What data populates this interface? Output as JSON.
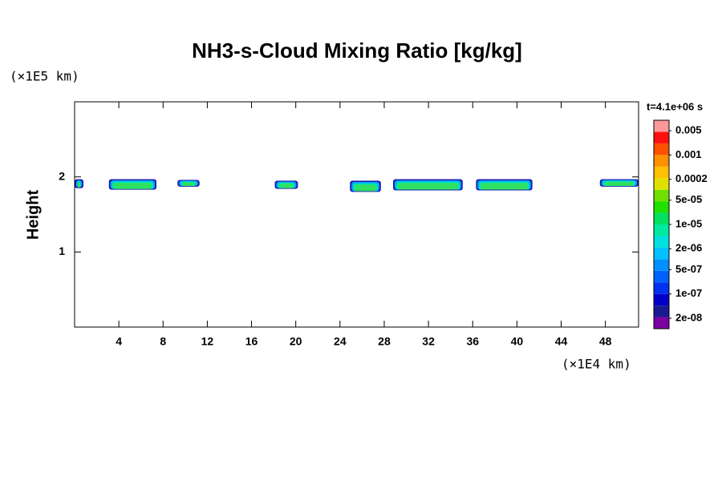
{
  "chart_data": {
    "type": "contour",
    "title": "NH3-s-Cloud Mixing Ratio [kg/kg]",
    "ylabel": "Height",
    "xunit": "(×1E4 km)",
    "yunit": "(×1E5 km)",
    "xlim": [
      0,
      51
    ],
    "ylim": [
      0,
      3
    ],
    "xticks": [
      4,
      8,
      12,
      16,
      20,
      24,
      28,
      32,
      36,
      40,
      44,
      48
    ],
    "yticks": [
      1,
      2
    ],
    "patch_colors": [
      "#2020b0",
      "#00a8ff",
      "#00e8b0",
      "#30e060"
    ],
    "patches": [
      {
        "x": [
          0,
          0.8
        ],
        "y": [
          1.85,
          1.97
        ]
      },
      {
        "x": [
          3.1,
          7.4
        ],
        "y": [
          1.83,
          1.97
        ]
      },
      {
        "x": [
          9.3,
          11.3
        ],
        "y": [
          1.87,
          1.96
        ]
      },
      {
        "x": [
          18.1,
          20.2
        ],
        "y": [
          1.84,
          1.95
        ]
      },
      {
        "x": [
          24.9,
          27.7
        ],
        "y": [
          1.8,
          1.95
        ]
      },
      {
        "x": [
          28.8,
          35.1
        ],
        "y": [
          1.82,
          1.97
        ]
      },
      {
        "x": [
          36.3,
          41.4
        ],
        "y": [
          1.82,
          1.97
        ]
      },
      {
        "x": [
          47.5,
          51
        ],
        "y": [
          1.87,
          1.97
        ]
      }
    ],
    "colorbar": {
      "title": "t=4.1e+06 s",
      "lim": [
        1e-08,
        0.01
      ],
      "colors": [
        "#7a00a0",
        "#1a1a90",
        "#0000c8",
        "#0030f0",
        "#0060ff",
        "#0090ff",
        "#00c0ff",
        "#00e0e0",
        "#00e8a0",
        "#00e060",
        "#20e000",
        "#70e000",
        "#e0e000",
        "#ffc000",
        "#ff9000",
        "#ff5000",
        "#ff1010",
        "#ff9898"
      ],
      "ticks": [
        {
          "value": 2e-08,
          "label": "2e-08"
        },
        {
          "value": 1e-07,
          "label": "1e-07"
        },
        {
          "value": 5e-07,
          "label": "5e-07"
        },
        {
          "value": 2e-06,
          "label": "2e-06"
        },
        {
          "value": 1e-05,
          "label": "1e-05"
        },
        {
          "value": 5e-05,
          "label": "5e-05"
        },
        0.0002,
        0.001,
        0.005
      ]
    }
  }
}
